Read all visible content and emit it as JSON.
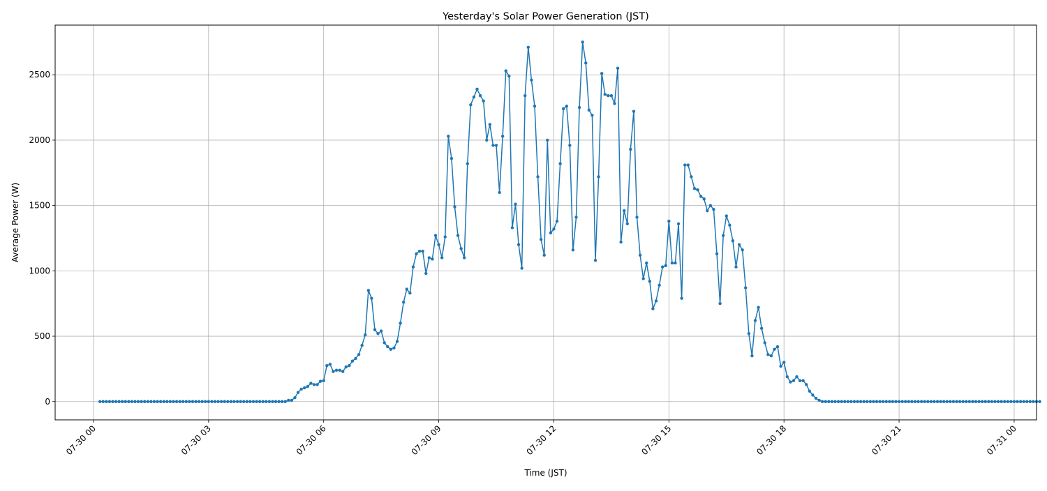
{
  "chart_data": {
    "type": "line",
    "title": "Yesterday's Solar Power Generation (JST)",
    "xlabel": "Time (JST)",
    "ylabel": "Average Power (W)",
    "x_start": "07-30 00:10",
    "x_step_minutes": 5,
    "x_end": "07-31 00:00",
    "xlim": [
      "07-29 23:00",
      "07-31 00:35"
    ],
    "ylim": [
      -140,
      2880
    ],
    "x_ticks": [
      "07-30 00",
      "07-30 03",
      "07-30 06",
      "07-30 09",
      "07-30 12",
      "07-30 15",
      "07-30 18",
      "07-30 21",
      "07-31 00"
    ],
    "y_ticks": [
      0,
      500,
      1000,
      1500,
      2000,
      2500
    ],
    "grid": true,
    "line_color": "#1f77b4",
    "marker": "circle",
    "series": [
      {
        "values": [
          0,
          0,
          0,
          0,
          0,
          0,
          0,
          0,
          0,
          0,
          0,
          0,
          0,
          0,
          0,
          0,
          0,
          0,
          0,
          0,
          0,
          0,
          0,
          0,
          0,
          0,
          0,
          0,
          0,
          0,
          0,
          0,
          0,
          0,
          0,
          0,
          0,
          0,
          0,
          0,
          0,
          0,
          0,
          0,
          0,
          0,
          0,
          0,
          0,
          0,
          0,
          0,
          0,
          0,
          0,
          0,
          0,
          0,
          0,
          10,
          10,
          30,
          70,
          95,
          105,
          115,
          140,
          130,
          130,
          155,
          160,
          275,
          285,
          230,
          240,
          240,
          230,
          265,
          275,
          310,
          330,
          360,
          430,
          510,
          850,
          790,
          550,
          520,
          540,
          450,
          420,
          400,
          410,
          460,
          600,
          760,
          860,
          830,
          1030,
          1130,
          1150,
          1150,
          980,
          1100,
          1090,
          1270,
          1200,
          1100,
          1260,
          2030,
          1860,
          1490,
          1270,
          1170,
          1100,
          1820,
          2270,
          2330,
          2390,
          2340,
          2300,
          2000,
          2120,
          1960,
          1960,
          1600,
          2030,
          2530,
          2490,
          1330,
          1510,
          1200,
          1020,
          2340,
          2710,
          2460,
          2260,
          1720,
          1240,
          1120,
          2000,
          1290,
          1320,
          1380,
          1820,
          2240,
          2260,
          1960,
          1160,
          1410,
          2250,
          2750,
          2590,
          2230,
          2190,
          1080,
          1720,
          2510,
          2350,
          2340,
          2340,
          2280,
          2550,
          1220,
          1460,
          1360,
          1930,
          2220,
          1410,
          1120,
          940,
          1060,
          920,
          710,
          770,
          890,
          1030,
          1040,
          1380,
          1060,
          1060,
          1360,
          790,
          1810,
          1810,
          1720,
          1630,
          1620,
          1570,
          1550,
          1460,
          1500,
          1470,
          1130,
          750,
          1270,
          1420,
          1350,
          1230,
          1030,
          1200,
          1160,
          870,
          520,
          350,
          620,
          720,
          560,
          450,
          360,
          350,
          400,
          420,
          270,
          300,
          190,
          150,
          160,
          190,
          160,
          160,
          130,
          80,
          50,
          25,
          10,
          0,
          0,
          0,
          0,
          0,
          0,
          0,
          0,
          0,
          0,
          0,
          0,
          0,
          0,
          0,
          0,
          0,
          0,
          0,
          0,
          0,
          0,
          0,
          0,
          0,
          0,
          0,
          0,
          0,
          0,
          0,
          0,
          0,
          0,
          0,
          0,
          0,
          0,
          0,
          0,
          0,
          0,
          0,
          0,
          0,
          0,
          0,
          0,
          0,
          0,
          0,
          0,
          0,
          0,
          0,
          0,
          0,
          0,
          0,
          0,
          0,
          0,
          0,
          0,
          0,
          0,
          0,
          0,
          0
        ]
      }
    ]
  }
}
